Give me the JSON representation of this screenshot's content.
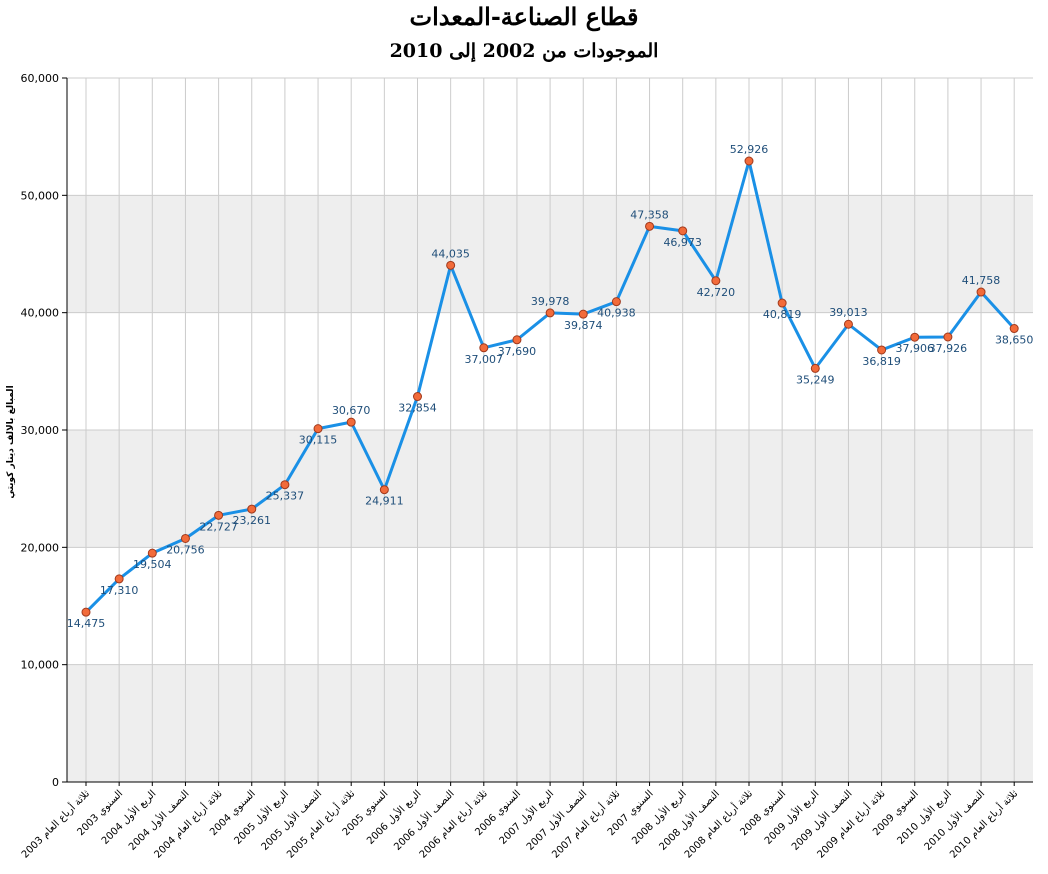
{
  "title": "قطاع الصناعة-المعدات",
  "subtitle": "الموجودات من 2002 إلى 2010",
  "chart_data": {
    "type": "line",
    "title": "قطاع الصناعة-المعدات",
    "subtitle": "الموجودات من 2002 إلى 2010",
    "xlabel": "",
    "ylabel": "المبالغ بالالف دينار كويتي",
    "ylim": [
      0,
      60000
    ],
    "yticks": [
      0,
      10000,
      20000,
      30000,
      40000,
      50000,
      60000
    ],
    "ytick_labels": [
      "0",
      "10,000",
      "20,000",
      "30,000",
      "40,000",
      "50,000",
      "60,000"
    ],
    "grid": "on",
    "legend": "none",
    "colors": {
      "line": "#1a90e6",
      "marker_fill": "#f26b3a",
      "marker_edge": "#a0391c",
      "label": "#1f4e79",
      "band": "#eeeeee",
      "grid": "#cccccc"
    },
    "categories": [
      "ثلاثة أرباع العام 2003",
      "السنوي 2003",
      "الربع الأول 2004",
      "النصف الأول 2004",
      "ثلاثة أرباع العام 2004",
      "السنوي 2004",
      "الربع الأول 2005",
      "النصف الأول 2005",
      "ثلاثة أرباع العام 2005",
      "السنوي 2005",
      "الربع الأول 2006",
      "النصف الأول 2006",
      "ثلاثة أرباع العام 2006",
      "السنوي 2006",
      "الربع الأول 2007",
      "النصف الأول 2007",
      "ثلاثة أرباع العام 2007",
      "السنوي 2007",
      "الربع الأول 2008",
      "النصف الأول 2008",
      "ثلاثة أرباع العام 2008",
      "السنوي 2008",
      "الربع الأول 2009",
      "النصف الأول 2009",
      "ثلاثة أرباع العام 2009",
      "السنوي 2009",
      "الربع الأول 2010",
      "النصف الأول 2010",
      "ثلاثة أرباع العام 2010"
    ],
    "values": [
      14475,
      17310,
      19504,
      20756,
      22727,
      23261,
      25337,
      30115,
      30670,
      24911,
      32854,
      44035,
      37007,
      37690,
      39978,
      39874,
      40938,
      47358,
      46973,
      42720,
      52926,
      40819,
      35249,
      39013,
      36819,
      37906,
      37926,
      41758,
      38650
    ],
    "value_labels": [
      "14,475",
      "17,310",
      "19,504",
      "20,756",
      "22,727",
      "23,261",
      "25,337",
      "30,115",
      "30,670",
      "24,911",
      "32,854",
      "44,035",
      "37,007",
      "37,690",
      "39,978",
      "39,874",
      "40,938",
      "47,358",
      "46,973",
      "42,720",
      "52,926",
      "40,819",
      "35,249",
      "39,013",
      "36,819",
      "37,906",
      "37,926",
      "41,758",
      "38,650"
    ]
  }
}
